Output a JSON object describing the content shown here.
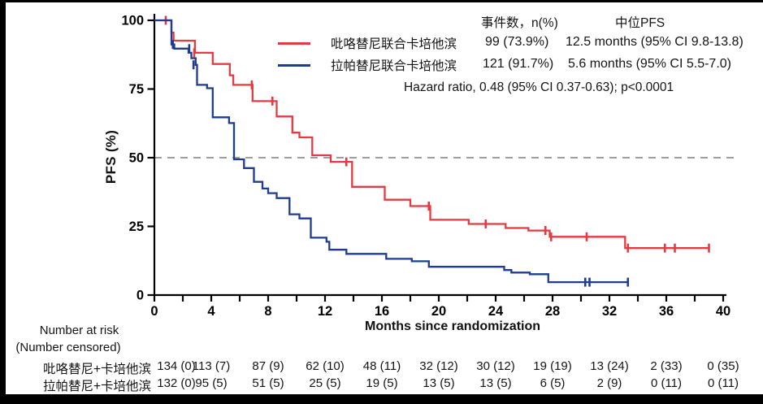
{
  "figure": {
    "frame_color": "#000000",
    "background": "#ffffff"
  },
  "legend": {
    "items": [
      {
        "label": "吡咯替尼联合卡培他滨",
        "color": "#e23b41"
      },
      {
        "label": "拉帕替尼联合卡培他滨",
        "color": "#1d3c92"
      }
    ]
  },
  "stats": {
    "col1_header": "事件数，n(%)",
    "col2_header": "中位PFS",
    "rows": [
      {
        "events": "99 (73.9%)",
        "median": "12.5 months (95% CI 9.8-13.8)"
      },
      {
        "events": "121 (91.7%)",
        "median": "5.6 months (95% CI 5.5-7.0)"
      }
    ],
    "hazard": "Hazard ratio, 0.48 (95% CI 0.37-0.63); p<0.0001"
  },
  "chart_data": {
    "type": "line",
    "subtype": "kaplan-meier-step",
    "title": "",
    "xlabel": "Months since randomization",
    "ylabel": "PFS (%)",
    "xlim": [
      0,
      40
    ],
    "ylim": [
      0,
      100
    ],
    "xticks_major": [
      0,
      4,
      8,
      12,
      16,
      20,
      24,
      28,
      32,
      36,
      40
    ],
    "xtick_minor_interval": 2,
    "yticks": [
      0,
      25,
      50,
      75,
      100
    ],
    "grid": false,
    "reference_line": {
      "y": 50,
      "style": "dashed",
      "color": "#9e9e9e"
    },
    "axis_color": "#000000",
    "series": [
      {
        "name": "吡咯替尼联合卡培他滨",
        "color": "#e23b41",
        "events": "99 (73.9%)",
        "median_months": 12.5,
        "steps": [
          [
            0,
            100
          ],
          [
            1.2,
            100
          ],
          [
            1.2,
            95.5
          ],
          [
            1.35,
            95.5
          ],
          [
            1.35,
            92.6
          ],
          [
            2.85,
            92.6
          ],
          [
            2.85,
            88.2
          ],
          [
            4.1,
            88.2
          ],
          [
            4.1,
            84.1
          ],
          [
            5.3,
            84.1
          ],
          [
            5.3,
            80.0
          ],
          [
            5.55,
            80.0
          ],
          [
            5.55,
            76.5
          ],
          [
            6.9,
            76.5
          ],
          [
            6.9,
            70.6
          ],
          [
            8.6,
            70.6
          ],
          [
            8.6,
            65.0
          ],
          [
            9.7,
            65.0
          ],
          [
            9.7,
            59.1
          ],
          [
            10.2,
            59.1
          ],
          [
            10.2,
            57.4
          ],
          [
            11.1,
            57.4
          ],
          [
            11.1,
            50.9
          ],
          [
            12.4,
            50.9
          ],
          [
            12.4,
            48.5
          ],
          [
            13.9,
            48.5
          ],
          [
            13.9,
            39.4
          ],
          [
            16.2,
            39.4
          ],
          [
            16.2,
            34.7
          ],
          [
            18.0,
            34.7
          ],
          [
            18.0,
            32.4
          ],
          [
            19.4,
            32.4
          ],
          [
            19.4,
            27.4
          ],
          [
            22.1,
            27.4
          ],
          [
            22.1,
            25.9
          ],
          [
            24.7,
            25.9
          ],
          [
            24.7,
            24.4
          ],
          [
            26.3,
            24.4
          ],
          [
            26.3,
            23.5
          ],
          [
            27.8,
            23.5
          ],
          [
            27.8,
            21.2
          ],
          [
            33.1,
            21.2
          ],
          [
            33.1,
            17.1
          ],
          [
            39.0,
            17.1
          ]
        ],
        "censors": [
          [
            0.8,
            100
          ],
          [
            2.8,
            88.2
          ],
          [
            6.85,
            76.5
          ],
          [
            8.3,
            70.6
          ],
          [
            13.5,
            48.5
          ],
          [
            19.3,
            32.4
          ],
          [
            23.3,
            25.9
          ],
          [
            27.5,
            23.5
          ],
          [
            27.9,
            21.2
          ],
          [
            30.4,
            21.2
          ],
          [
            33.3,
            17.1
          ],
          [
            35.9,
            17.1
          ],
          [
            36.6,
            17.1
          ],
          [
            39.0,
            17.1
          ]
        ]
      },
      {
        "name": "拉帕替尼联合卡培他滨",
        "color": "#1d3c92",
        "events": "121 (91.7%)",
        "median_months": 5.6,
        "steps": [
          [
            0,
            100
          ],
          [
            1.2,
            100
          ],
          [
            1.2,
            91.2
          ],
          [
            1.4,
            91.2
          ],
          [
            1.4,
            89.7
          ],
          [
            2.4,
            89.7
          ],
          [
            2.4,
            88.2
          ],
          [
            2.6,
            88.2
          ],
          [
            2.6,
            86.2
          ],
          [
            2.9,
            86.2
          ],
          [
            2.9,
            83.8
          ],
          [
            3.0,
            83.8
          ],
          [
            3.0,
            76.5
          ],
          [
            3.7,
            76.5
          ],
          [
            3.7,
            75.3
          ],
          [
            4.1,
            75.3
          ],
          [
            4.1,
            64.7
          ],
          [
            5.25,
            64.7
          ],
          [
            5.25,
            62.6
          ],
          [
            5.6,
            62.6
          ],
          [
            5.6,
            49.4
          ],
          [
            6.3,
            49.4
          ],
          [
            6.3,
            46.2
          ],
          [
            7.0,
            46.2
          ],
          [
            7.0,
            41.2
          ],
          [
            7.6,
            41.2
          ],
          [
            7.6,
            38.8
          ],
          [
            8.0,
            38.8
          ],
          [
            8.0,
            37.1
          ],
          [
            8.6,
            37.1
          ],
          [
            8.6,
            35.3
          ],
          [
            9.5,
            35.3
          ],
          [
            9.5,
            29.4
          ],
          [
            10.2,
            29.4
          ],
          [
            10.2,
            27.9
          ],
          [
            11.0,
            27.9
          ],
          [
            11.0,
            20.9
          ],
          [
            12.1,
            20.9
          ],
          [
            12.1,
            19.4
          ],
          [
            12.3,
            19.4
          ],
          [
            12.3,
            16.5
          ],
          [
            13.5,
            16.5
          ],
          [
            13.5,
            15.0
          ],
          [
            16.3,
            15.0
          ],
          [
            16.3,
            13.2
          ],
          [
            18.1,
            13.2
          ],
          [
            18.1,
            12.3
          ],
          [
            19.3,
            12.3
          ],
          [
            19.3,
            10.3
          ],
          [
            24.6,
            10.3
          ],
          [
            24.6,
            9.1
          ],
          [
            25.1,
            9.1
          ],
          [
            25.1,
            8.2
          ],
          [
            26.4,
            8.2
          ],
          [
            26.4,
            7.6
          ],
          [
            27.7,
            7.6
          ],
          [
            27.7,
            4.7
          ],
          [
            33.3,
            4.7
          ]
        ],
        "censors": [
          [
            1.3,
            91.2
          ],
          [
            2.45,
            89.7
          ],
          [
            2.75,
            83.8
          ],
          [
            30.3,
            4.7
          ],
          [
            30.6,
            4.7
          ],
          [
            33.3,
            4.7
          ]
        ]
      }
    ]
  },
  "risk_table": {
    "title": "Number at risk",
    "subtitle": "(Number censored)",
    "time_points": [
      0,
      4,
      8,
      12,
      16,
      20,
      24,
      28,
      32,
      36,
      40
    ],
    "rows": [
      {
        "label": "吡咯替尼+卡培他滨",
        "values": [
          "134 (0)",
          "113 (7)",
          "87 (9)",
          "62 (10)",
          "48 (11)",
          "32 (12)",
          "30 (12)",
          "19 (19)",
          "13 (24)",
          "2 (33)",
          "0 (35)"
        ]
      },
      {
        "label": "拉帕替尼+卡培他滨",
        "values": [
          "132 (0)",
          "95 (5)",
          "51 (5)",
          "25 (5)",
          "19 (5)",
          "13 (5)",
          "13 (5)",
          "6 (5)",
          "2 (9)",
          "0 (11)",
          "0 (11)"
        ]
      }
    ]
  }
}
